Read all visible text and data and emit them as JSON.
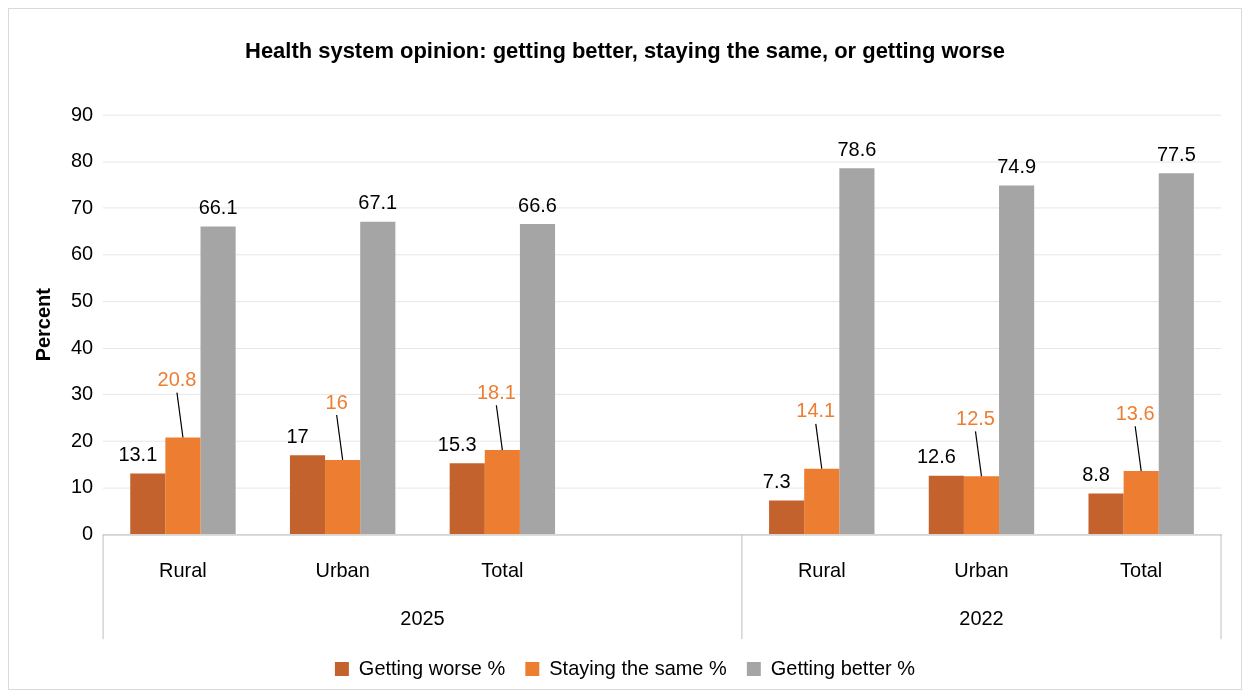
{
  "chart_data": {
    "type": "bar",
    "title": "Health system opinion: getting better, staying the same, or getting worse",
    "ylabel": "Percent",
    "categories": [
      "Rural",
      "Urban",
      "Total",
      null,
      "Rural",
      "Urban",
      "Total"
    ],
    "series": [
      {
        "name": "Getting worse %",
        "color": "#c4622d",
        "values": [
          13.1,
          17,
          15.3,
          null,
          7.3,
          12.6,
          8.8
        ]
      },
      {
        "name": "Staying the same %",
        "color": "#ed7d31",
        "values": [
          20.8,
          16,
          18.1,
          null,
          14.1,
          12.5,
          13.6
        ]
      },
      {
        "name": "Getting better %",
        "color": "#a5a5a5",
        "values": [
          66.1,
          67.1,
          66.6,
          null,
          78.6,
          74.9,
          77.5
        ]
      }
    ],
    "annotations": [
      "2025",
      "2022"
    ],
    "ylim": [
      0,
      90
    ],
    "yticks": [
      0,
      10,
      20,
      30,
      40,
      50,
      60,
      70,
      80,
      90
    ],
    "grid": "y",
    "legend": "bottom",
    "data_labels": true
  }
}
